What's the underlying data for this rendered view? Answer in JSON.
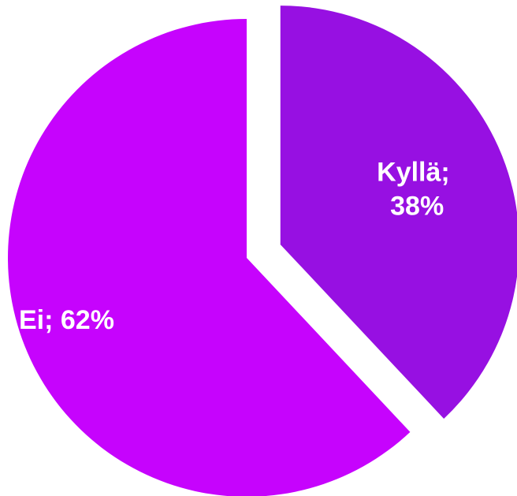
{
  "chart_data": {
    "type": "pie",
    "title": "",
    "slices": [
      {
        "label": "Kyllä",
        "value": 38,
        "display_text_line1": "Kyllä;",
        "display_text_line2": "38%",
        "color": "#9710E2",
        "exploded": true
      },
      {
        "label": "Ei",
        "value": 62,
        "display_text_line1": "Ei; 62%",
        "display_text_line2": "",
        "color": "#C603FD",
        "exploded": false
      }
    ],
    "legend": "none",
    "data_labels": "inside"
  }
}
